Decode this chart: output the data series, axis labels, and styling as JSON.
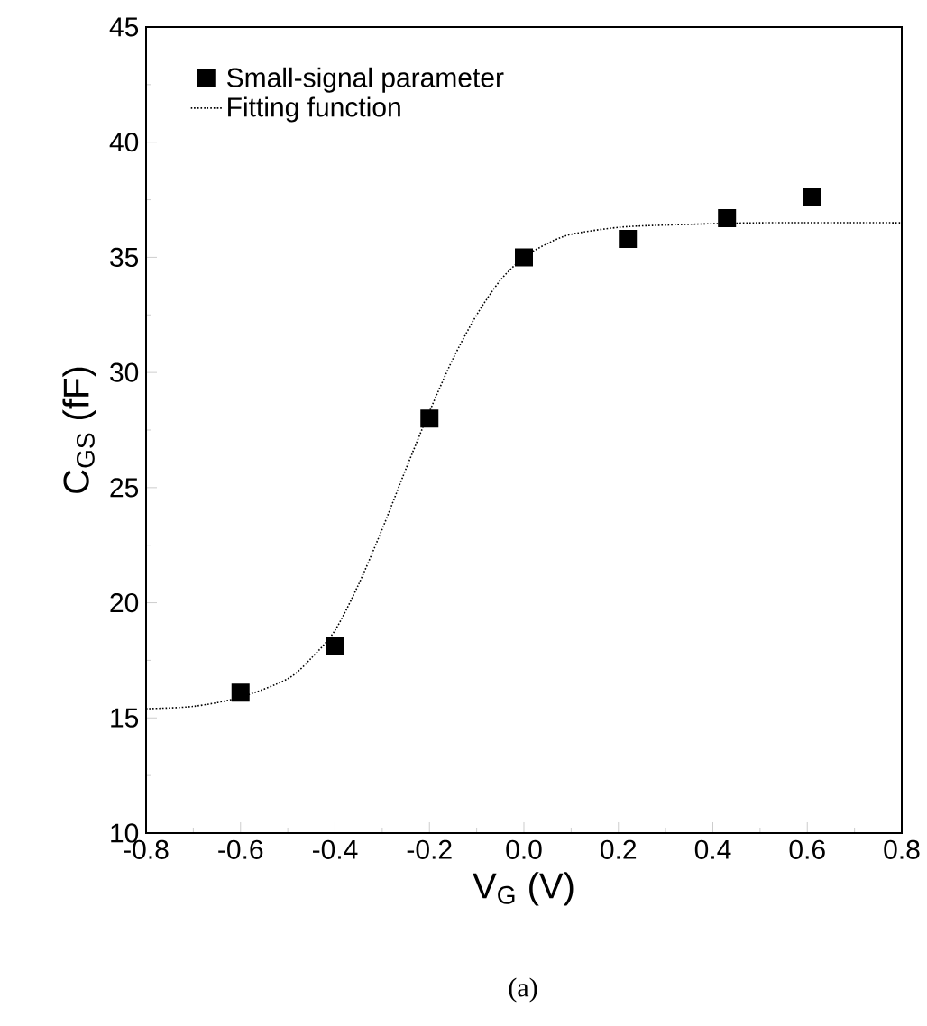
{
  "chart_data": {
    "type": "scatter",
    "xlabel": "V$_{G}$ (V)",
    "ylabel": "C$_{GS}$ (fF)",
    "xlim": [
      -0.8,
      0.8
    ],
    "ylim": [
      10,
      45
    ],
    "xticks": [
      {
        "value": -0.8,
        "label": "-0.8"
      },
      {
        "value": -0.6,
        "label": "-0.6"
      },
      {
        "value": -0.4,
        "label": "-0.4"
      },
      {
        "value": -0.2,
        "label": "-0.2"
      },
      {
        "value": 0,
        "label": "0.0"
      },
      {
        "value": 0.2,
        "label": "0.2"
      },
      {
        "value": 0.4,
        "label": "0.4"
      },
      {
        "value": 0.6,
        "label": "0.6"
      },
      {
        "value": 0.8,
        "label": "0.8"
      }
    ],
    "yticks": [
      10,
      15,
      20,
      25,
      30,
      35,
      40,
      45
    ],
    "legend": "top left",
    "grid": false,
    "annotations": [
      "(a)"
    ],
    "series": [
      {
        "name": "Small-signal parameter",
        "marker": "square",
        "color": "#000000",
        "x": [
          -0.6,
          -0.4,
          -0.2,
          0.0,
          0.22,
          0.43,
          0.61
        ],
        "values": [
          16.1,
          18.1,
          28.0,
          35.0,
          35.8,
          36.7,
          37.6
        ]
      },
      {
        "name": "Fitting function",
        "type": "line",
        "line_style": "dotted",
        "marker": "none",
        "color": "#000000",
        "x": [
          -0.8,
          -0.7,
          -0.6,
          -0.5,
          -0.45,
          -0.4,
          -0.35,
          -0.3,
          -0.25,
          -0.2,
          -0.15,
          -0.1,
          -0.05,
          0.0,
          0.05,
          0.1,
          0.2,
          0.3,
          0.5,
          0.8
        ],
        "values": [
          15.4,
          15.5,
          15.9,
          16.7,
          17.6,
          18.8,
          20.8,
          23.2,
          25.8,
          28.3,
          30.6,
          32.5,
          34.0,
          35.0,
          35.6,
          36.0,
          36.3,
          36.4,
          36.5,
          36.5
        ]
      }
    ]
  }
}
